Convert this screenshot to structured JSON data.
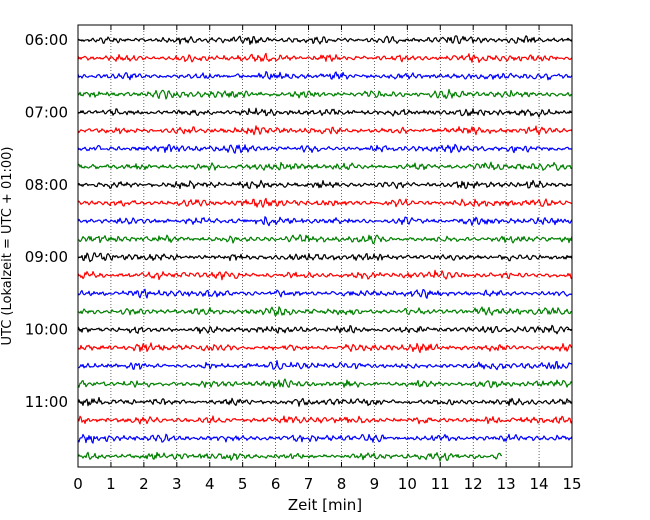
{
  "chart_data": {
    "type": "line",
    "title": "",
    "xlabel": "Zeit  [min]",
    "ylabel": "UTC (Lokalzeit = UTC + 01:00)",
    "xlim": [
      0,
      15
    ],
    "x_ticks": [
      "0",
      "1",
      "2",
      "3",
      "4",
      "5",
      "6",
      "7",
      "8",
      "9",
      "10",
      "11",
      "12",
      "13",
      "14",
      "15"
    ],
    "y_tick_labels": [
      "06:00",
      "07:00",
      "08:00",
      "09:00",
      "10:00",
      "11:00"
    ],
    "grid": "vertical dotted lines at each minute",
    "trace_minutes": 15,
    "traces_per_hour": 4,
    "trace_colors": [
      "#000000",
      "#ff0000",
      "#0000ff",
      "#008000"
    ],
    "traces": [
      {
        "start": "06:00",
        "end_minute": 15
      },
      {
        "start": "06:15",
        "end_minute": 15
      },
      {
        "start": "06:30",
        "end_minute": 15
      },
      {
        "start": "06:45",
        "end_minute": 15
      },
      {
        "start": "07:00",
        "end_minute": 15
      },
      {
        "start": "07:15",
        "end_minute": 15
      },
      {
        "start": "07:30",
        "end_minute": 15
      },
      {
        "start": "07:45",
        "end_minute": 15
      },
      {
        "start": "08:00",
        "end_minute": 15
      },
      {
        "start": "08:15",
        "end_minute": 15
      },
      {
        "start": "08:30",
        "end_minute": 15
      },
      {
        "start": "08:45",
        "end_minute": 15
      },
      {
        "start": "09:00",
        "end_minute": 15
      },
      {
        "start": "09:15",
        "end_minute": 15
      },
      {
        "start": "09:30",
        "end_minute": 15
      },
      {
        "start": "09:45",
        "end_minute": 15
      },
      {
        "start": "10:00",
        "end_minute": 15
      },
      {
        "start": "10:15",
        "end_minute": 15
      },
      {
        "start": "10:30",
        "end_minute": 15
      },
      {
        "start": "10:45",
        "end_minute": 15
      },
      {
        "start": "11:00",
        "end_minute": 15
      },
      {
        "start": "11:15",
        "end_minute": 15
      },
      {
        "start": "11:30",
        "end_minute": 15
      },
      {
        "start": "11:45",
        "end_minute": 12.9
      }
    ]
  }
}
